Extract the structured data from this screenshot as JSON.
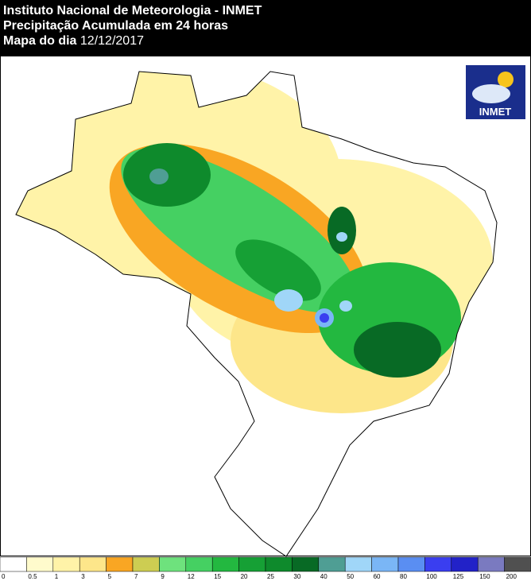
{
  "header": {
    "title": "Instituto Nacional de Meteorologia - INMET",
    "subtitle": "Precipitação Acumulada em 24 horas",
    "date_label": "Mapa do dia",
    "date": "12/12/2017"
  },
  "logo": {
    "text": "INMET"
  },
  "legend": {
    "labels": [
      "0",
      "0.5",
      "1",
      "3",
      "5",
      "7",
      "9",
      "12",
      "15",
      "20",
      "25",
      "30",
      "40",
      "50",
      "60",
      "80",
      "100",
      "125",
      "150",
      "200"
    ],
    "colors": [
      "#ffffff",
      "#fffbcc",
      "#fff3a8",
      "#fde68a",
      "#f9a623",
      "#cdcd52",
      "#6ee27d",
      "#45d062",
      "#23b840",
      "#16a035",
      "#0e8a2c",
      "#086a25",
      "#4f9e94",
      "#a0d6f8",
      "#7ab6f6",
      "#5a8ef2",
      "#3a3ef0",
      "#2222c8",
      "#7a7ac0",
      "#505050"
    ]
  }
}
